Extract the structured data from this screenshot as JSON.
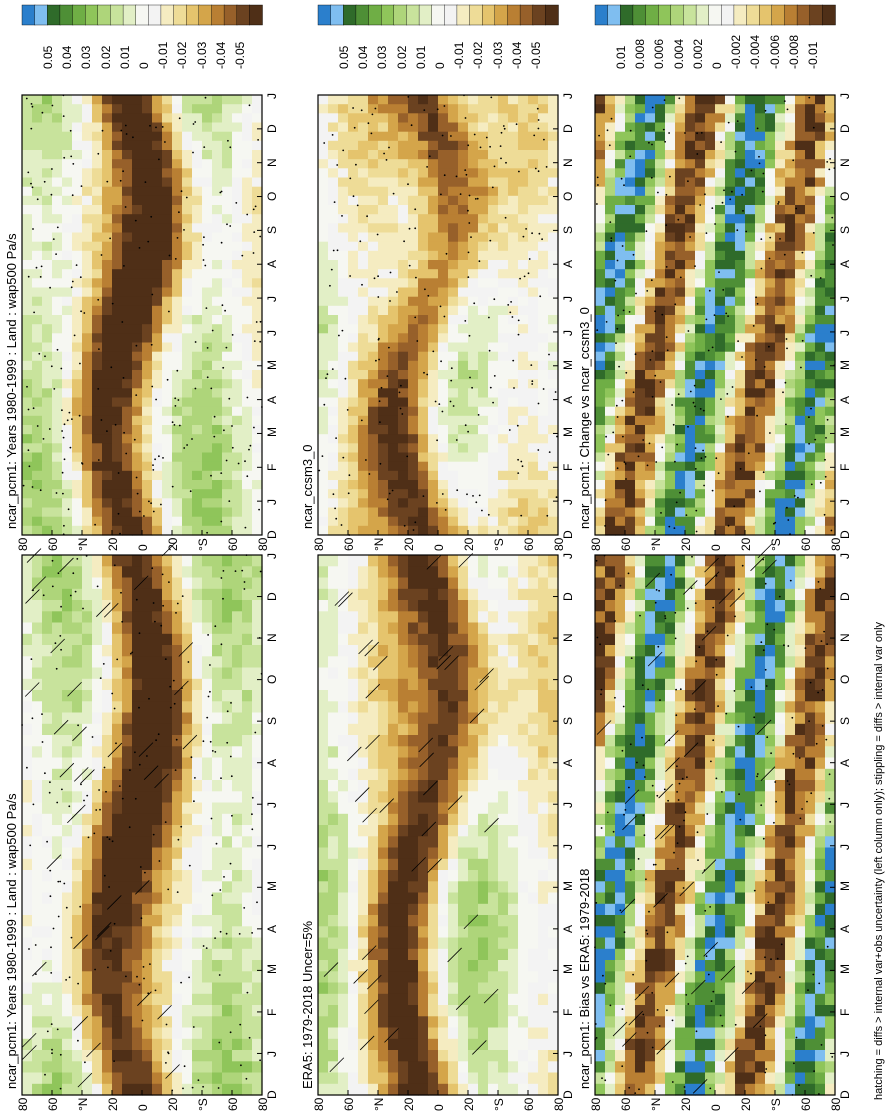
{
  "figure": {
    "footnote": "hatching = diffs > internal var+obs uncertainty (left column only); stippling = diffs > internal var only"
  },
  "colors": {
    "scale": [
      "#2b7fcc",
      "#7fbef0",
      "#2f6b2a",
      "#4e8f36",
      "#6fae45",
      "#8fc55a",
      "#aed57a",
      "#c8e39c",
      "#e2efc6",
      "#f6f7f2",
      "#f3f3f3",
      "#f5ecc1",
      "#eedc97",
      "#e5c46d",
      "#d4a54a",
      "#b97f33",
      "#97602a",
      "#6b4220",
      "#4f2f17"
    ]
  },
  "chart_data": [
    {
      "type": "heatmap",
      "title": "ncar_pcm1: Years 1980-1999 : Land : wap500 Pa/s",
      "x_ticks": [
        "D",
        "J",
        "F",
        "M",
        "A",
        "M",
        "J",
        "J",
        "A",
        "S",
        "O",
        "N",
        "D",
        "J"
      ],
      "y_ticks": [
        "80",
        "60",
        "°N",
        "20",
        "0",
        "20",
        "°S",
        "60",
        "80"
      ],
      "colorbar": [
        "0.05",
        "0.04",
        "0.03",
        "0.02",
        "0.01",
        "0",
        "-0.01",
        "-0.02",
        "-0.03",
        "-0.04",
        "-0.05"
      ],
      "hatching": true,
      "stippling": true
    },
    {
      "type": "heatmap",
      "title": "ncar_pcm1: Years 1980-1999 : Land : wap500 Pa/s",
      "x_ticks": [
        "D",
        "J",
        "F",
        "M",
        "A",
        "M",
        "J",
        "J",
        "A",
        "S",
        "O",
        "N",
        "D",
        "J"
      ],
      "y_ticks": [
        "80",
        "60",
        "°N",
        "20",
        "0",
        "20",
        "°S",
        "60",
        "80"
      ],
      "colorbar": [
        "0.05",
        "0.04",
        "0.03",
        "0.02",
        "0.01",
        "0",
        "-0.01",
        "-0.02",
        "-0.03",
        "-0.04",
        "-0.05"
      ],
      "hatching": false,
      "stippling": true
    },
    {
      "type": "heatmap",
      "title": "ERA5: 1979-2018 Uncer=5%",
      "x_ticks": [
        "D",
        "J",
        "F",
        "M",
        "A",
        "M",
        "J",
        "J",
        "A",
        "S",
        "O",
        "N",
        "D",
        "J"
      ],
      "y_ticks": [
        "80",
        "60",
        "°N",
        "20",
        "0",
        "20",
        "°S",
        "60",
        "80"
      ],
      "colorbar": [
        "0.05",
        "0.04",
        "0.03",
        "0.02",
        "0.01",
        "0",
        "-0.01",
        "-0.02",
        "-0.03",
        "-0.04",
        "-0.05"
      ],
      "hatching": true,
      "stippling": false
    },
    {
      "type": "heatmap",
      "title": "ncar_ccsm3_0",
      "x_ticks": [
        "D",
        "J",
        "F",
        "M",
        "A",
        "M",
        "J",
        "J",
        "A",
        "S",
        "O",
        "N",
        "D",
        "J"
      ],
      "y_ticks": [
        "80",
        "60",
        "°N",
        "20",
        "0",
        "20",
        "°S",
        "60",
        "80"
      ],
      "colorbar": [
        "0.05",
        "0.04",
        "0.03",
        "0.02",
        "0.01",
        "0",
        "-0.01",
        "-0.02",
        "-0.03",
        "-0.04",
        "-0.05"
      ],
      "hatching": false,
      "stippling": true
    },
    {
      "type": "heatmap",
      "title": "ncar_pcm1: Bias vs ERA5: 1979-2018",
      "x_ticks": [
        "D",
        "J",
        "F",
        "M",
        "A",
        "M",
        "J",
        "J",
        "A",
        "S",
        "O",
        "N",
        "D",
        "J"
      ],
      "y_ticks": [
        "80",
        "60",
        "°N",
        "20",
        "0",
        "20",
        "°S",
        "60",
        "80"
      ],
      "colorbar": [
        "0.01",
        "0.008",
        "0.006",
        "0.004",
        "0.002",
        "0",
        "-0.002",
        "-0.004",
        "-0.006",
        "-0.008",
        "-0.01"
      ],
      "hatching": true,
      "stippling": true
    },
    {
      "type": "heatmap",
      "title": "ncar_pcm1: Change vs ncar_ccsm3_0",
      "x_ticks": [
        "D",
        "J",
        "F",
        "M",
        "A",
        "M",
        "J",
        "J",
        "A",
        "S",
        "O",
        "N",
        "D",
        "J"
      ],
      "y_ticks": [
        "80",
        "60",
        "°N",
        "20",
        "0",
        "20",
        "°S",
        "60",
        "80"
      ],
      "colorbar": [
        "0.01",
        "0.008",
        "0.006",
        "0.004",
        "0.002",
        "0",
        "-0.002",
        "-0.004",
        "-0.006",
        "-0.008",
        "-0.01"
      ],
      "hatching": false,
      "stippling": true
    }
  ]
}
